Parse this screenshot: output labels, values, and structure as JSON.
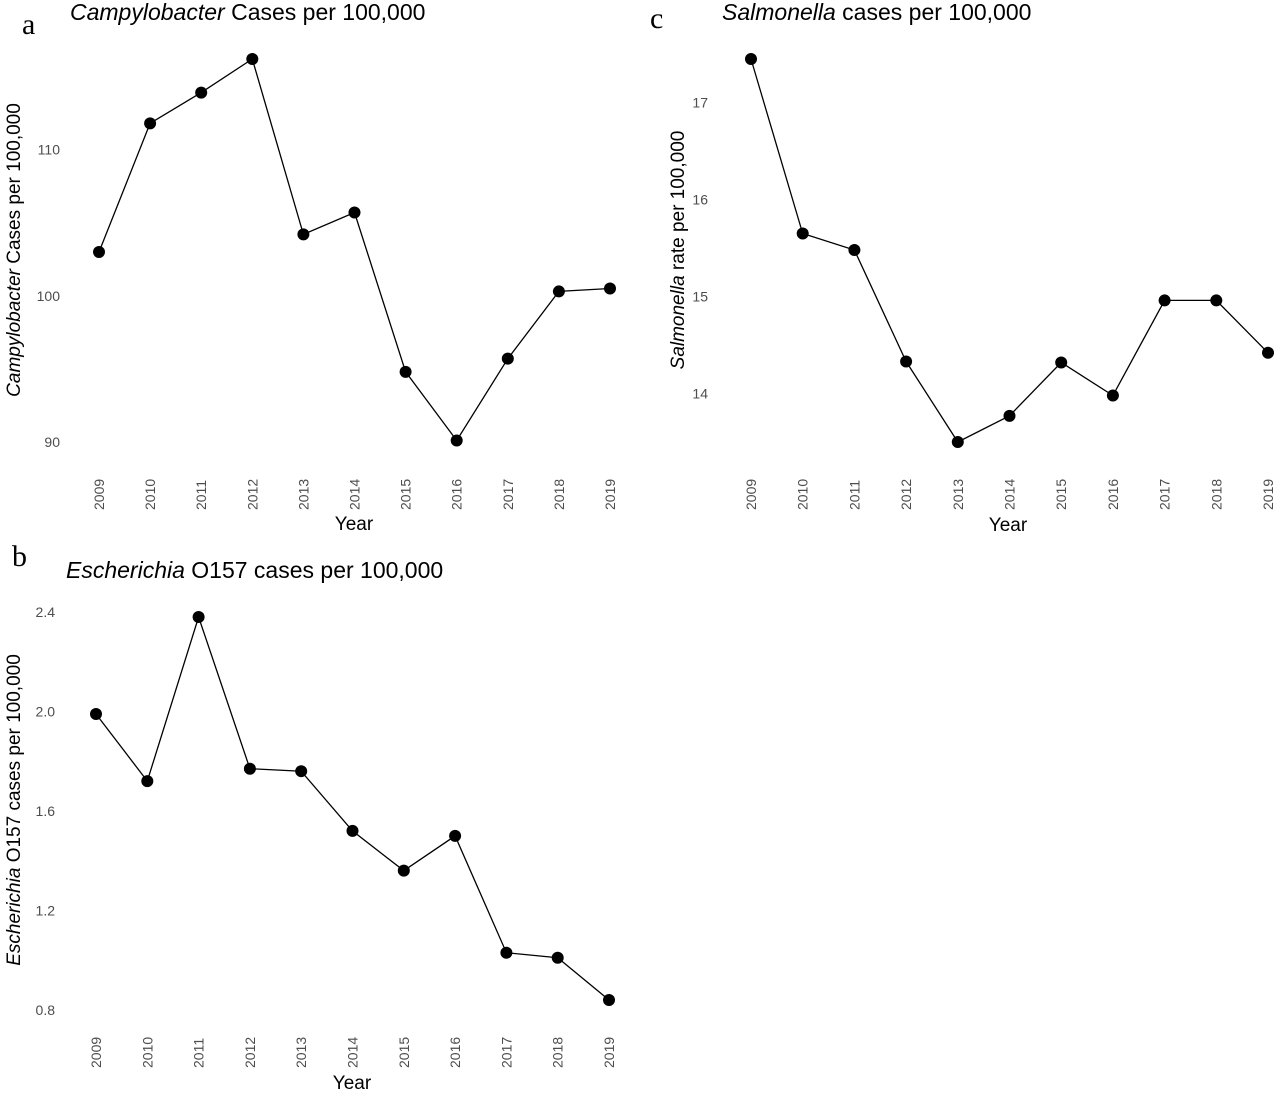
{
  "chart_data": [
    {
      "id": "a",
      "type": "line",
      "panel_letter": "a",
      "title_italic": "Campylobacter",
      "title_rest": " Cases per 100,000",
      "xlabel": "Year",
      "ylabel_italic": "Campylobacter",
      "ylabel_rest": " Cases per 100,000",
      "x": [
        "2009",
        "2010",
        "2011",
        "2012",
        "2013",
        "2014",
        "2015",
        "2016",
        "2017",
        "2018",
        "2019"
      ],
      "values": [
        103.0,
        111.8,
        113.9,
        116.2,
        104.2,
        105.7,
        94.8,
        90.1,
        95.7,
        100.3,
        100.5
      ],
      "ylim": [
        90,
        116.2
      ],
      "yticks": [
        90,
        100,
        110
      ],
      "ytick_labels": [
        "90",
        "100",
        "110"
      ],
      "grid": false
    },
    {
      "id": "b",
      "type": "line",
      "panel_letter": "b",
      "title_italic": "Escherichia",
      "title_rest": "  O157 cases per 100,000",
      "xlabel": "Year",
      "ylabel_italic": "Escherichia",
      "ylabel_rest": "  O157 cases per 100,000",
      "x": [
        "2009",
        "2010",
        "2011",
        "2012",
        "2013",
        "2014",
        "2015",
        "2016",
        "2017",
        "2018",
        "2019"
      ],
      "values": [
        1.99,
        1.72,
        2.38,
        1.77,
        1.76,
        1.52,
        1.36,
        1.5,
        1.03,
        1.01,
        0.84
      ],
      "ylim": [
        0.84,
        2.38
      ],
      "yticks": [
        0.8,
        1.2,
        1.6,
        2.0,
        2.4
      ],
      "ytick_labels": [
        "0.8",
        "1.2",
        "1.6",
        "2.0",
        "2.4"
      ],
      "grid": false
    },
    {
      "id": "c",
      "type": "line",
      "panel_letter": "c",
      "title_italic": "Salmonella",
      "title_rest": " cases per 100,000",
      "xlabel": "Year",
      "ylabel_italic": "Salmonella",
      "ylabel_rest": "  rate per 100,000",
      "x": [
        "2009",
        "2010",
        "2011",
        "2012",
        "2013",
        "2014",
        "2015",
        "2016",
        "2017",
        "2018",
        "2019"
      ],
      "values": [
        17.45,
        15.65,
        15.48,
        14.33,
        13.5,
        13.77,
        14.32,
        13.98,
        14.96,
        14.96,
        14.42
      ],
      "ylim": [
        13.5,
        17.45
      ],
      "yticks": [
        14,
        15,
        16,
        17
      ],
      "ytick_labels": [
        "14",
        "15",
        "16",
        "17"
      ],
      "grid": false
    }
  ]
}
